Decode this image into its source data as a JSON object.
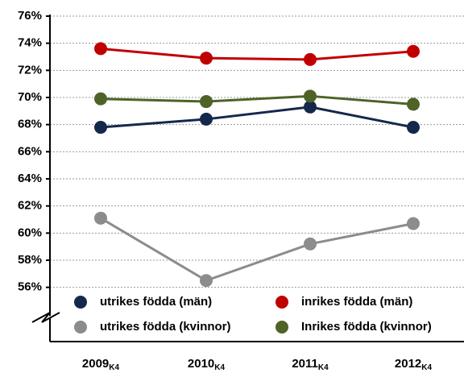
{
  "chart_data": {
    "type": "line",
    "categories": [
      "2009",
      "2010",
      "2011",
      "2012"
    ],
    "category_subscript": "K4",
    "series": [
      {
        "name": "utrikes födda (män)",
        "color": "#14284b",
        "values": [
          67.8,
          68.4,
          69.3,
          67.8
        ]
      },
      {
        "name": "inrikes födda (män)",
        "color": "#c00000",
        "values": [
          73.6,
          72.9,
          72.8,
          73.4
        ]
      },
      {
        "name": "utrikes födda (kvinnor)",
        "color": "#8c8c8c",
        "values": [
          61.1,
          56.5,
          59.2,
          60.7
        ]
      },
      {
        "name": "Inrikes födda (kvinnor)",
        "color": "#4f6228",
        "values": [
          69.9,
          69.7,
          70.1,
          69.5
        ]
      }
    ],
    "ylim": [
      52,
      76
    ],
    "yticks": [
      {
        "value": 56,
        "label": "56%"
      },
      {
        "value": 58,
        "label": "58%"
      },
      {
        "value": 60,
        "label": "60%"
      },
      {
        "value": 62,
        "label": "62%"
      },
      {
        "value": 64,
        "label": "64%"
      },
      {
        "value": 66,
        "label": "66%"
      },
      {
        "value": 68,
        "label": "68%"
      },
      {
        "value": 70,
        "label": "70%"
      },
      {
        "value": 72,
        "label": "72%"
      },
      {
        "value": 74,
        "label": "74%"
      },
      {
        "value": 76,
        "label": "76%"
      }
    ],
    "grid": true,
    "legend": "bottom"
  }
}
